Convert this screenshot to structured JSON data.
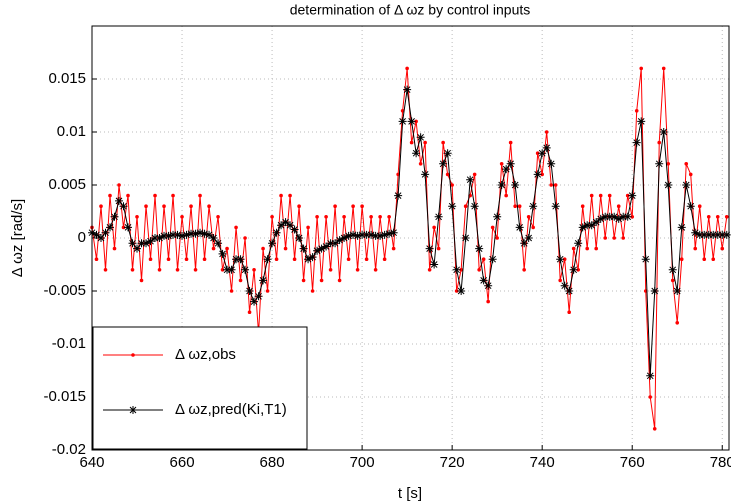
{
  "chart_data": {
    "type": "line",
    "title": "determination of Δ ωz by control inputs",
    "xlabel": "t [s]",
    "ylabel": "Δ ωz [rad/s]",
    "x": [
      640,
      641,
      642,
      643,
      644,
      645,
      646,
      647,
      648,
      649,
      650,
      651,
      652,
      653,
      654,
      655,
      656,
      657,
      658,
      659,
      660,
      661,
      662,
      663,
      664,
      665,
      666,
      667,
      668,
      669,
      670,
      671,
      672,
      673,
      674,
      675,
      676,
      677,
      678,
      679,
      680,
      681,
      682,
      683,
      684,
      685,
      686,
      687,
      688,
      689,
      690,
      691,
      692,
      693,
      694,
      695,
      696,
      697,
      698,
      699,
      700,
      701,
      702,
      703,
      704,
      705,
      706,
      707,
      708,
      709,
      710,
      711,
      712,
      713,
      714,
      715,
      716,
      717,
      718,
      719,
      720,
      721,
      722,
      723,
      724,
      725,
      726,
      727,
      728,
      729,
      730,
      731,
      732,
      733,
      734,
      735,
      736,
      737,
      738,
      739,
      740,
      741,
      742,
      743,
      744,
      745,
      746,
      747,
      748,
      749,
      750,
      751,
      752,
      753,
      754,
      755,
      756,
      757,
      758,
      759,
      760,
      761,
      762,
      763,
      764,
      765,
      766,
      767,
      768,
      769,
      770,
      771,
      772,
      773,
      774,
      775,
      776,
      777,
      778,
      779,
      780,
      781
    ],
    "series": [
      {
        "name": "Δ ωz,obs",
        "color": "#ff0000",
        "marker": "dot",
        "values": [
          0.001,
          -0.002,
          0.003,
          -0.003,
          0.004,
          -0.001,
          0.005,
          0.001,
          0.004,
          -0.003,
          0.002,
          -0.004,
          0.003,
          -0.002,
          0.004,
          -0.003,
          0.003,
          -0.002,
          0.004,
          -0.003,
          0.002,
          -0.002,
          0.003,
          -0.003,
          0.004,
          -0.002,
          0.003,
          -0.001,
          0.002,
          -0.003,
          -0.001,
          -0.005,
          0.001,
          -0.004,
          0,
          -0.007,
          -0.003,
          -0.009,
          -0.001,
          -0.005,
          0.002,
          -0.002,
          0.004,
          -0.001,
          0.004,
          -0.002,
          0.003,
          -0.004,
          0.001,
          -0.005,
          0.002,
          -0.004,
          0.002,
          -0.003,
          0.003,
          -0.004,
          0.002,
          -0.002,
          0.003,
          -0.003,
          0.003,
          -0.002,
          0.002,
          -0.003,
          0.002,
          -0.002,
          0.002,
          -0.001,
          0.006,
          0.012,
          0.016,
          0.009,
          0.011,
          0.007,
          0.009,
          -0.003,
          0.001,
          -0.001,
          0.009,
          0.006,
          0.005,
          -0.005,
          -0.003,
          0.003,
          0.004,
          0.006,
          -0.003,
          -0.002,
          -0.006,
          0.001,
          0,
          0.007,
          0.004,
          0.009,
          0.003,
          0.003,
          -0.003,
          0.002,
          0.001,
          0.008,
          0.006,
          0.01,
          0.005,
          0.005,
          -0.004,
          -0.002,
          -0.007,
          -0.001,
          -0.003,
          0.003,
          -0.001,
          0.004,
          -0.001,
          0.004,
          0,
          0.004,
          0,
          0.003,
          0,
          0.004,
          0.002,
          0.012,
          0.016,
          -0.005,
          -0.015,
          -0.018,
          0.009,
          0.016,
          0.007,
          -0.004,
          -0.008,
          -0.002,
          0.007,
          0.006,
          -0.001,
          0.003,
          -0.002,
          0.002,
          -0.002,
          0.002,
          -0.001,
          0.002
        ]
      },
      {
        "name": "Δ ωz,pred(Ki,T1)",
        "color": "#000000",
        "marker": "star",
        "values": [
          0.0005,
          0.0003,
          0,
          0.0005,
          0.001,
          0.002,
          0.0035,
          0.003,
          0.001,
          -0.0005,
          -0.001,
          -0.0005,
          -0.0005,
          -0.0003,
          0,
          0,
          0.0002,
          0.0002,
          0.0003,
          0.0003,
          0.0002,
          0.0003,
          0.0004,
          0.0004,
          0.0005,
          0.0004,
          0.0003,
          0,
          -0.0005,
          -0.0015,
          -0.003,
          -0.003,
          -0.002,
          -0.002,
          -0.003,
          -0.005,
          -0.006,
          -0.0055,
          -0.004,
          -0.002,
          -0.0005,
          0.0005,
          0.0012,
          0.0015,
          0.0012,
          0.0008,
          0,
          -0.001,
          -0.002,
          -0.0018,
          -0.0012,
          -0.001,
          -0.0008,
          -0.0005,
          -0.0005,
          -0.0002,
          0,
          0.0002,
          0.0003,
          0.0002,
          0.0003,
          0.0003,
          0.0003,
          0.0002,
          0.0002,
          0.0003,
          0.0004,
          0.0005,
          0.004,
          0.011,
          0.014,
          0.011,
          0.008,
          0.0095,
          0.006,
          -0.001,
          -0.0025,
          0.002,
          0.007,
          0.008,
          0.003,
          -0.003,
          -0.005,
          0,
          0.0055,
          0.003,
          -0.001,
          -0.004,
          -0.0045,
          -0.002,
          0.002,
          0.005,
          0.0065,
          0.007,
          0.005,
          0.001,
          -0.0005,
          0,
          0.003,
          0.006,
          0.008,
          0.0085,
          0.007,
          0.003,
          -0.002,
          -0.0045,
          -0.005,
          -0.003,
          -0.0005,
          0.001,
          0.0012,
          0.0012,
          0.0015,
          0.0018,
          0.002,
          0.002,
          0.002,
          0.0018,
          0.002,
          0.002,
          0.004,
          0.009,
          0.011,
          -0.002,
          -0.013,
          -0.005,
          0.007,
          0.01,
          0.005,
          -0.003,
          -0.005,
          0.001,
          0.005,
          0.003,
          0.0005,
          0.0003,
          0.0003,
          0.0003,
          0.0003,
          0.0003,
          0.0003,
          0.0003
        ]
      }
    ],
    "xlim": [
      640,
      781.5
    ],
    "xticks": [
      640,
      660,
      680,
      700,
      720,
      740,
      760,
      780
    ],
    "ylim": [
      -0.02,
      0.02
    ],
    "yticks": [
      -0.02,
      -0.015,
      -0.01,
      -0.005,
      0,
      0.005,
      0.01,
      0.015
    ],
    "grid": true,
    "legend": "lower left"
  }
}
